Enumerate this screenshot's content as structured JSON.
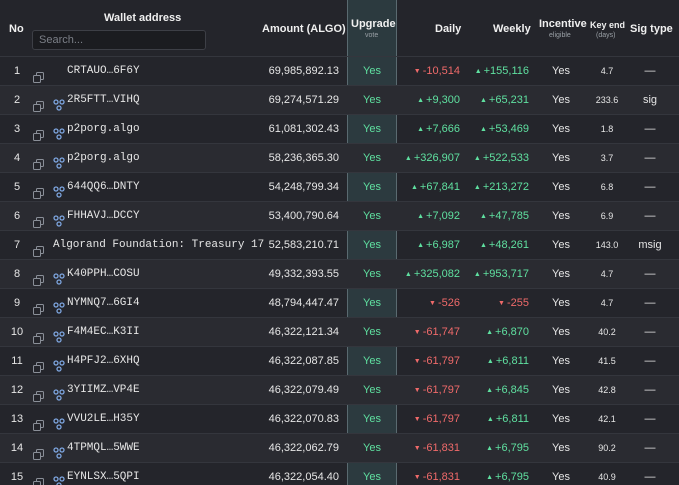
{
  "header": {
    "no": "No",
    "wallet_address": "Wallet address",
    "search_placeholder": "Search...",
    "amount": "Amount (ALGO)",
    "upgrade": "Upgrade",
    "upgrade_sub": "vote",
    "daily": "Daily",
    "weekly": "Weekly",
    "incentive": "Incentive",
    "incentive_sub": "eligible",
    "key_end": "Key end",
    "key_end_sub": "(days)",
    "sig_type": "Sig type"
  },
  "colors": {
    "positive": "#5fe0a0",
    "negative": "#f06a6a",
    "link_icon": "#7ea6e0",
    "upgrade_band": "#2c3a3f"
  },
  "rows": [
    {
      "no": "1",
      "icon": "copy-icon",
      "address": "CRTAUO…6F6Y",
      "amount": "69,985,892.13",
      "upgrade": "Yes",
      "daily": "-10,514",
      "daily_dir": "down",
      "weekly": "+155,116",
      "weekly_dir": "up",
      "incentive": "Yes",
      "key_end": "4.7",
      "sig": "—"
    },
    {
      "no": "2",
      "icon": "link-icon",
      "address": "2R5FTT…VIHQ",
      "amount": "69,274,571.29",
      "upgrade": "Yes",
      "daily": "+9,300",
      "daily_dir": "up",
      "weekly": "+65,231",
      "weekly_dir": "up",
      "incentive": "Yes",
      "key_end": "233.6",
      "sig": "sig"
    },
    {
      "no": "3",
      "icon": "link-icon",
      "address": "p2porg.algo",
      "amount": "61,081,302.43",
      "upgrade": "Yes",
      "daily": "+7,666",
      "daily_dir": "up",
      "weekly": "+53,469",
      "weekly_dir": "up",
      "incentive": "Yes",
      "key_end": "1.8",
      "sig": "—"
    },
    {
      "no": "4",
      "icon": "link-icon",
      "address": "p2porg.algo",
      "amount": "58,236,365.30",
      "upgrade": "Yes",
      "daily": "+326,907",
      "daily_dir": "up",
      "weekly": "+522,533",
      "weekly_dir": "up",
      "incentive": "Yes",
      "key_end": "3.7",
      "sig": "—"
    },
    {
      "no": "5",
      "icon": "link-icon",
      "address": "644QQ6…DNTY",
      "amount": "54,248,799.34",
      "upgrade": "Yes",
      "daily": "+67,841",
      "daily_dir": "up",
      "weekly": "+213,272",
      "weekly_dir": "up",
      "incentive": "Yes",
      "key_end": "6.8",
      "sig": "—"
    },
    {
      "no": "6",
      "icon": "link-icon",
      "address": "FHHAVJ…DCCY",
      "amount": "53,400,790.64",
      "upgrade": "Yes",
      "daily": "+7,092",
      "daily_dir": "up",
      "weekly": "+47,785",
      "weekly_dir": "up",
      "incentive": "Yes",
      "key_end": "6.9",
      "sig": "—"
    },
    {
      "no": "7",
      "icon": "",
      "address": "Algorand Foundation: Treasury 17",
      "amount": "52,583,210.71",
      "upgrade": "Yes",
      "daily": "+6,987",
      "daily_dir": "up",
      "weekly": "+48,261",
      "weekly_dir": "up",
      "incentive": "Yes",
      "key_end": "143.0",
      "sig": "msig"
    },
    {
      "no": "8",
      "icon": "link-icon",
      "address": "K40PPH…COSU",
      "amount": "49,332,393.55",
      "upgrade": "Yes",
      "daily": "+325,082",
      "daily_dir": "up",
      "weekly": "+953,717",
      "weekly_dir": "up",
      "incentive": "Yes",
      "key_end": "4.7",
      "sig": "—"
    },
    {
      "no": "9",
      "icon": "link-icon",
      "address": "NYMNQ7…6GI4",
      "amount": "48,794,447.47",
      "upgrade": "Yes",
      "daily": "-526",
      "daily_dir": "down",
      "weekly": "-255",
      "weekly_dir": "down",
      "incentive": "Yes",
      "key_end": "4.7",
      "sig": "—"
    },
    {
      "no": "10",
      "icon": "link-icon",
      "address": "F4M4EC…K3II",
      "amount": "46,322,121.34",
      "upgrade": "Yes",
      "daily": "-61,747",
      "daily_dir": "down",
      "weekly": "+6,870",
      "weekly_dir": "up",
      "incentive": "Yes",
      "key_end": "40.2",
      "sig": "—"
    },
    {
      "no": "11",
      "icon": "link-icon",
      "address": "H4PFJ2…6XHQ",
      "amount": "46,322,087.85",
      "upgrade": "Yes",
      "daily": "-61,797",
      "daily_dir": "down",
      "weekly": "+6,811",
      "weekly_dir": "up",
      "incentive": "Yes",
      "key_end": "41.5",
      "sig": "—"
    },
    {
      "no": "12",
      "icon": "link-icon",
      "address": "3YIIMZ…VP4E",
      "amount": "46,322,079.49",
      "upgrade": "Yes",
      "daily": "-61,797",
      "daily_dir": "down",
      "weekly": "+6,845",
      "weekly_dir": "up",
      "incentive": "Yes",
      "key_end": "42.8",
      "sig": "—"
    },
    {
      "no": "13",
      "icon": "link-icon",
      "address": "VVU2LE…H35Y",
      "amount": "46,322,070.83",
      "upgrade": "Yes",
      "daily": "-61,797",
      "daily_dir": "down",
      "weekly": "+6,811",
      "weekly_dir": "up",
      "incentive": "Yes",
      "key_end": "42.1",
      "sig": "—"
    },
    {
      "no": "14",
      "icon": "link-icon",
      "address": "4TPMQL…5WWE",
      "amount": "46,322,062.79",
      "upgrade": "Yes",
      "daily": "-61,831",
      "daily_dir": "down",
      "weekly": "+6,795",
      "weekly_dir": "up",
      "incentive": "Yes",
      "key_end": "90.2",
      "sig": "—"
    },
    {
      "no": "15",
      "icon": "link-icon",
      "address": "EYNLSX…5QPI",
      "amount": "46,322,054.40",
      "upgrade": "Yes",
      "daily": "-61,831",
      "daily_dir": "down",
      "weekly": "+6,795",
      "weekly_dir": "up",
      "incentive": "Yes",
      "key_end": "40.9",
      "sig": "—"
    }
  ]
}
